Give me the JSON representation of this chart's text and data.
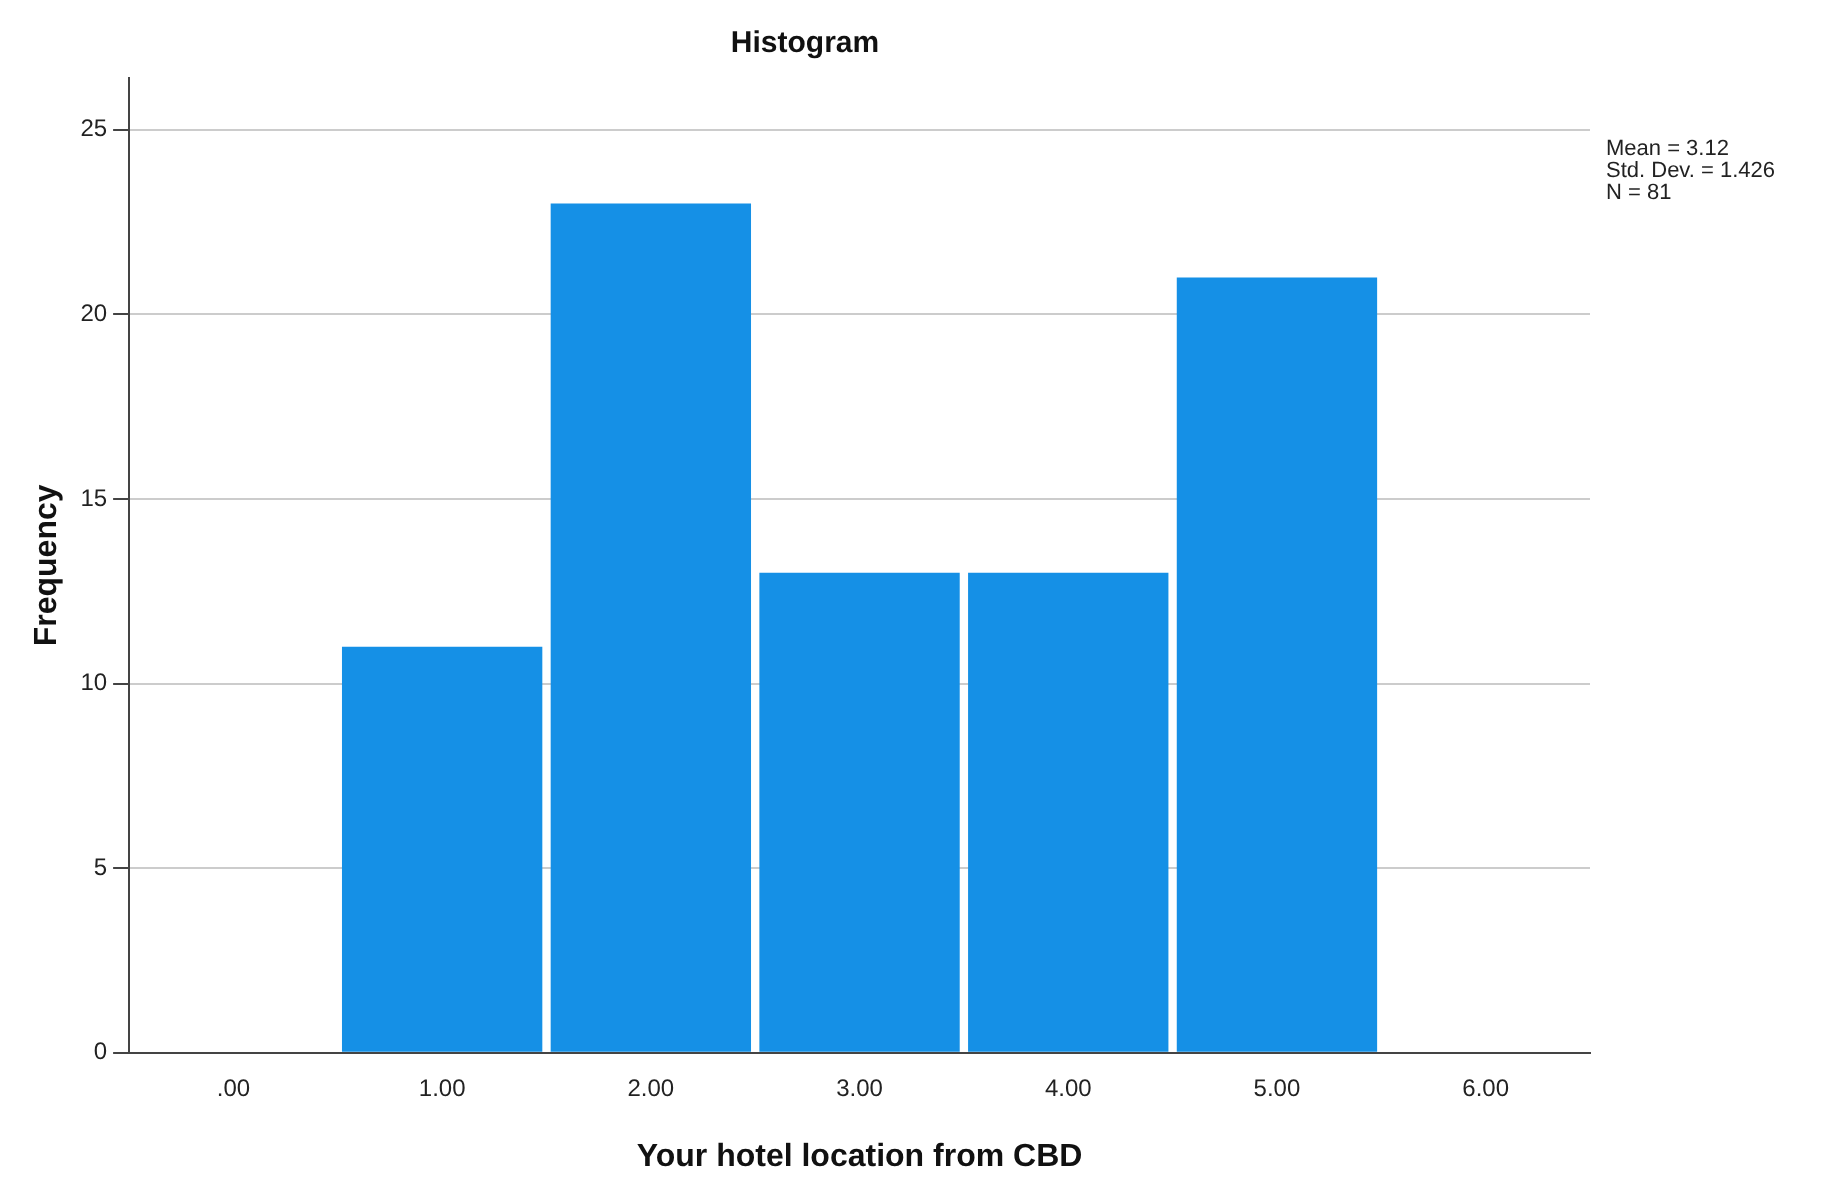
{
  "chart_data": {
    "type": "histogram",
    "title": "Histogram",
    "xlabel": "Your hotel location from CBD",
    "ylabel": "Frequency",
    "bins": [
      0.5,
      1.5,
      2.5,
      3.5,
      4.5,
      5.5
    ],
    "values": [
      11,
      23,
      13,
      13,
      21
    ],
    "color": "#1590e6",
    "xlim": [
      -0.5,
      6.5
    ],
    "xticks": [
      {
        "value": 0,
        "label": ".00"
      },
      {
        "value": 1,
        "label": "1.00"
      },
      {
        "value": 2,
        "label": "2.00"
      },
      {
        "value": 3,
        "label": "3.00"
      },
      {
        "value": 4,
        "label": "4.00"
      },
      {
        "value": 5,
        "label": "5.00"
      },
      {
        "value": 6,
        "label": "6.00"
      }
    ],
    "ylim": [
      0,
      26.4
    ],
    "yticks": [
      0,
      5,
      10,
      15,
      20,
      25
    ],
    "grid": "y",
    "annotations": [
      "Mean = 3.12",
      "Std. Dev. = 1.426",
      "N = 81"
    ]
  }
}
